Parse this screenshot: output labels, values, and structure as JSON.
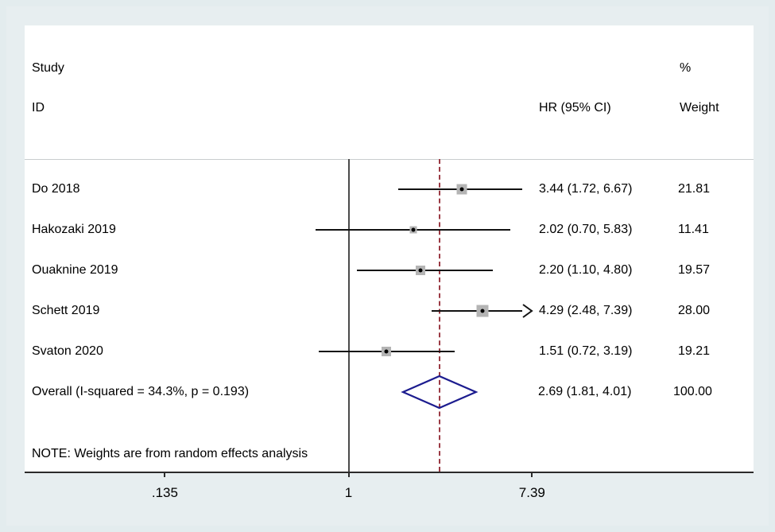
{
  "colors": {
    "background": "#e7eef0",
    "plot_background": "#ffffff",
    "ci_line": "#121212",
    "marker_fill": "#b4b4b4",
    "marker_dot": "#000000",
    "diamond_stroke": "#1c1c8f",
    "dashed_ref_line": "#9b3a44",
    "null_ref_line": "#4a4a4a"
  },
  "chart_data": {
    "type": "forest",
    "x_scale": "log",
    "headers": {
      "study_line1": "Study",
      "study_line2": "ID",
      "percent": "%",
      "hr": "HR (95% CI)",
      "weight": "Weight"
    },
    "studies": [
      {
        "id": "Do 2018",
        "hr": 3.44,
        "lo": 1.72,
        "hi": 6.67,
        "hr_ci_label": "3.44 (1.72, 6.67)",
        "weight": 21.81,
        "weight_label": "21.81",
        "clipped_high": false
      },
      {
        "id": "Hakozaki 2019",
        "hr": 2.02,
        "lo": 0.7,
        "hi": 5.83,
        "hr_ci_label": "2.02 (0.70, 5.83)",
        "weight": 11.41,
        "weight_label": "11.41",
        "clipped_high": false
      },
      {
        "id": "Ouaknine 2019",
        "hr": 2.2,
        "lo": 1.1,
        "hi": 4.8,
        "hr_ci_label": "2.20 (1.10, 4.80)",
        "weight": 19.57,
        "weight_label": "19.57",
        "clipped_high": false
      },
      {
        "id": "Schett 2019",
        "hr": 4.29,
        "lo": 2.48,
        "hi": 7.39,
        "hr_ci_label": "4.29 (2.48, 7.39)",
        "weight": 28.0,
        "weight_label": "28.00",
        "clipped_high": true
      },
      {
        "id": "Svaton 2020",
        "hr": 1.51,
        "lo": 0.72,
        "hi": 3.19,
        "hr_ci_label": "1.51 (0.72, 3.19)",
        "weight": 19.21,
        "weight_label": "19.21",
        "clipped_high": false
      }
    ],
    "overall": {
      "id_label": "Overall  (I-squared = 34.3%, p = 0.193)",
      "hr": 2.69,
      "lo": 1.81,
      "hi": 4.01,
      "hr_ci_label": "2.69 (1.81, 4.01)",
      "weight_label": "100.00"
    },
    "note": "NOTE: Weights are from random effects analysis",
    "x_ticks": [
      {
        "value": 0.135,
        "label": ".135"
      },
      {
        "value": 1,
        "label": "1"
      },
      {
        "value": 7.39,
        "label": "7.39"
      }
    ],
    "ref_line_value": 1,
    "dashed_line_value": 2.69
  }
}
